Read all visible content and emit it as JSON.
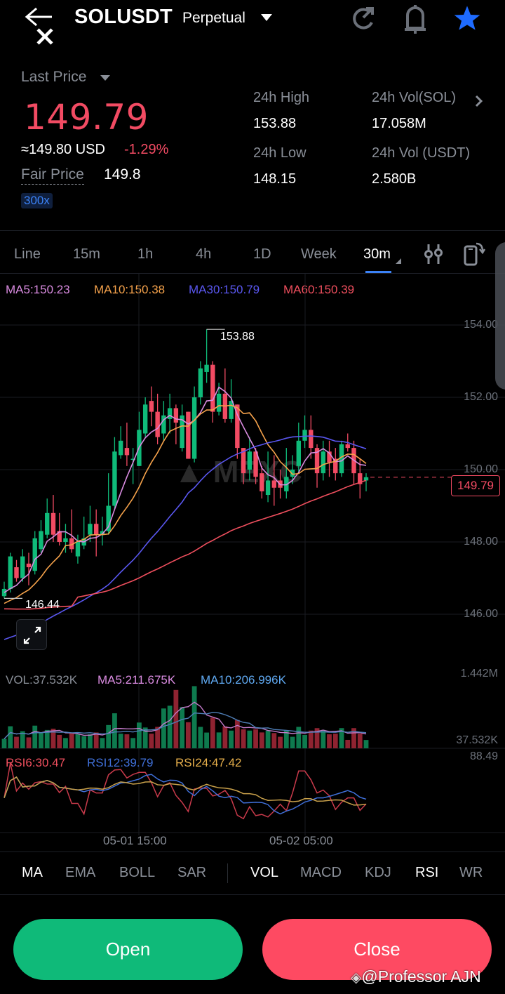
{
  "header": {
    "symbol": "SOLUSDT",
    "contract_type": "Perpetual",
    "icons": [
      "back-close-icon",
      "refresh-icon",
      "bell-icon",
      "star-icon"
    ],
    "star_color": "#1e6bff"
  },
  "ticker": {
    "last_price_label": "Last Price",
    "last_price": "149.79",
    "usd_equiv": "≈149.80 USD",
    "change_pct": "-1.29%",
    "fair_price_label": "Fair Price",
    "fair_price": "149.8",
    "leverage": "300x",
    "stats": {
      "high_label": "24h High",
      "high": "153.88",
      "low_label": "24h Low",
      "low": "148.15",
      "vol_sol_label": "24h Vol(SOL)",
      "vol_sol": "17.058M",
      "vol_usdt_label": "24h Vol (USDT)",
      "vol_usdt": "2.580B"
    },
    "down_color": "#f24b63",
    "up_color": "#0fba79"
  },
  "timeframes": {
    "tabs": [
      "Line",
      "15m",
      "1h",
      "4h",
      "1D",
      "Week",
      "30m"
    ],
    "active": "30m"
  },
  "main_chart": {
    "legend": {
      "ma5": "MA5:150.23",
      "ma10": "MA10:150.38",
      "ma30": "MA30:150.79",
      "ma60": "MA60:150.39"
    },
    "y_ticks": [
      "154.00",
      "152.00",
      "150.00",
      "148.00",
      "146.00"
    ],
    "high_marker": "153.88",
    "low_marker": "146.44",
    "current_price_tag": "149.79",
    "watermark": "MEXC"
  },
  "volume_chart": {
    "legend": {
      "vol": "VOL:37.532K",
      "ma5": "MA5:211.675K",
      "ma10": "MA10:206.996K"
    },
    "y_top": "1.442M",
    "y_bottom": "37.532K"
  },
  "rsi_chart": {
    "legend": {
      "rsi6": "RSI6:30.47",
      "rsi12": "RSI12:39.79",
      "rsi24": "RSI24:47.42"
    },
    "y_top": "88.49"
  },
  "x_axis": [
    "05-01 15:00",
    "05-02 05:00"
  ],
  "indicators": {
    "main": [
      "MA",
      "EMA",
      "BOLL",
      "SAR"
    ],
    "sub": [
      "VOL",
      "MACD",
      "KDJ",
      "RSI",
      "WR"
    ],
    "active": [
      "MA",
      "VOL",
      "RSI"
    ]
  },
  "actions": {
    "open": "Open",
    "close": "Close"
  },
  "watermark_text": "@Professor AJN",
  "chart_data": {
    "type": "candlestick",
    "title": "SOLUSDT Perpetual 30m",
    "ylim": [
      145.2,
      155.0
    ],
    "y_ticks": [
      154,
      152,
      150,
      148,
      146
    ],
    "x_labels": [
      "05-01 15:00",
      "05-02 05:00"
    ],
    "candles": [
      [
        146.5,
        146.7,
        146.9,
        146.44
      ],
      [
        146.7,
        147.6,
        147.7,
        146.6
      ],
      [
        147.3,
        147.0,
        147.5,
        146.9
      ],
      [
        147.0,
        147.6,
        147.8,
        146.9
      ],
      [
        147.4,
        147.3,
        147.7,
        146.8
      ],
      [
        147.2,
        148.1,
        148.3,
        147.1
      ],
      [
        147.8,
        148.3,
        148.6,
        147.7
      ],
      [
        148.2,
        148.8,
        149.2,
        148.1
      ],
      [
        148.8,
        148.2,
        149.3,
        148.0
      ],
      [
        148.3,
        148.0,
        148.8,
        147.9
      ],
      [
        148.0,
        148.1,
        148.5,
        147.7
      ],
      [
        148.1,
        147.8,
        148.9,
        147.7
      ],
      [
        147.6,
        148.0,
        148.2,
        147.4
      ],
      [
        147.9,
        148.1,
        148.7,
        147.8
      ],
      [
        148.2,
        148.5,
        149.0,
        148.0
      ],
      [
        148.5,
        148.2,
        148.9,
        147.6
      ],
      [
        148.2,
        148.3,
        148.7,
        147.9
      ],
      [
        148.3,
        149.0,
        149.9,
        148.2
      ],
      [
        149.0,
        150.5,
        150.9,
        148.9
      ],
      [
        150.4,
        150.8,
        151.2,
        150.3
      ],
      [
        150.6,
        150.4,
        151.3,
        150.1
      ],
      [
        150.3,
        150.3,
        150.6,
        149.6
      ],
      [
        150.1,
        151.1,
        151.6,
        150.1
      ],
      [
        151.0,
        151.8,
        152.0,
        150.9
      ],
      [
        151.9,
        151.6,
        152.3,
        151.2
      ],
      [
        151.6,
        150.9,
        152.1,
        150.7
      ],
      [
        151.0,
        151.5,
        151.9,
        150.8
      ],
      [
        151.4,
        151.7,
        152.1,
        151.0
      ],
      [
        151.7,
        151.3,
        151.8,
        150.7
      ],
      [
        150.6,
        151.5,
        151.8,
        150.5
      ],
      [
        151.6,
        150.3,
        151.6,
        150.3
      ],
      [
        150.3,
        152.0,
        152.3,
        150.2
      ],
      [
        152.0,
        152.8,
        153.0,
        151.8
      ],
      [
        152.7,
        152.9,
        153.88,
        152.4
      ],
      [
        152.9,
        151.6,
        153.0,
        151.3
      ],
      [
        151.6,
        152.1,
        152.4,
        151.5
      ],
      [
        152.1,
        151.4,
        152.8,
        151.3
      ],
      [
        151.4,
        151.9,
        152.5,
        151.3
      ],
      [
        151.8,
        150.6,
        151.8,
        150.3
      ],
      [
        150.6,
        149.9,
        150.6,
        149.6
      ],
      [
        150.0,
        150.5,
        150.9,
        149.7
      ],
      [
        150.5,
        149.8,
        150.6,
        149.6
      ],
      [
        149.9,
        149.4,
        150.1,
        149.2
      ],
      [
        149.3,
        149.7,
        150.5,
        149.1
      ],
      [
        149.7,
        149.5,
        150.4,
        149.0
      ],
      [
        149.7,
        149.5,
        150.0,
        149.2
      ],
      [
        149.4,
        149.8,
        150.6,
        149.2
      ],
      [
        149.8,
        150.0,
        150.4,
        149.6
      ],
      [
        150.1,
        150.8,
        151.3,
        149.9
      ],
      [
        150.8,
        151.1,
        151.5,
        150.6
      ],
      [
        151.1,
        150.6,
        151.5,
        150.3
      ],
      [
        150.6,
        149.9,
        150.7,
        149.5
      ],
      [
        149.9,
        150.5,
        150.8,
        149.7
      ],
      [
        150.5,
        150.2,
        150.8,
        149.8
      ],
      [
        150.3,
        149.9,
        150.6,
        149.7
      ],
      [
        149.9,
        150.7,
        150.8,
        149.8
      ],
      [
        150.7,
        150.6,
        151.0,
        150.5
      ],
      [
        150.6,
        149.9,
        150.8,
        149.6
      ],
      [
        149.9,
        149.6,
        150.3,
        149.2
      ],
      [
        149.7,
        149.79,
        149.9,
        149.4
      ]
    ],
    "series": [
      {
        "name": "MA5",
        "color": "#d98be0",
        "last": 150.23
      },
      {
        "name": "MA10",
        "color": "#f5a24b",
        "last": 150.38
      },
      {
        "name": "MA30",
        "color": "#5a57f0",
        "last": 150.79
      },
      {
        "name": "MA60",
        "color": "#f04f5e",
        "last": 150.39
      }
    ],
    "volume": {
      "ylim": [
        0,
        1442000
      ],
      "last": 37532,
      "ma5": 211675,
      "ma10": 206996
    },
    "rsi": {
      "rsi6": 30.47,
      "rsi12": 39.79,
      "rsi24": 47.42,
      "ymax": 88.49
    }
  }
}
